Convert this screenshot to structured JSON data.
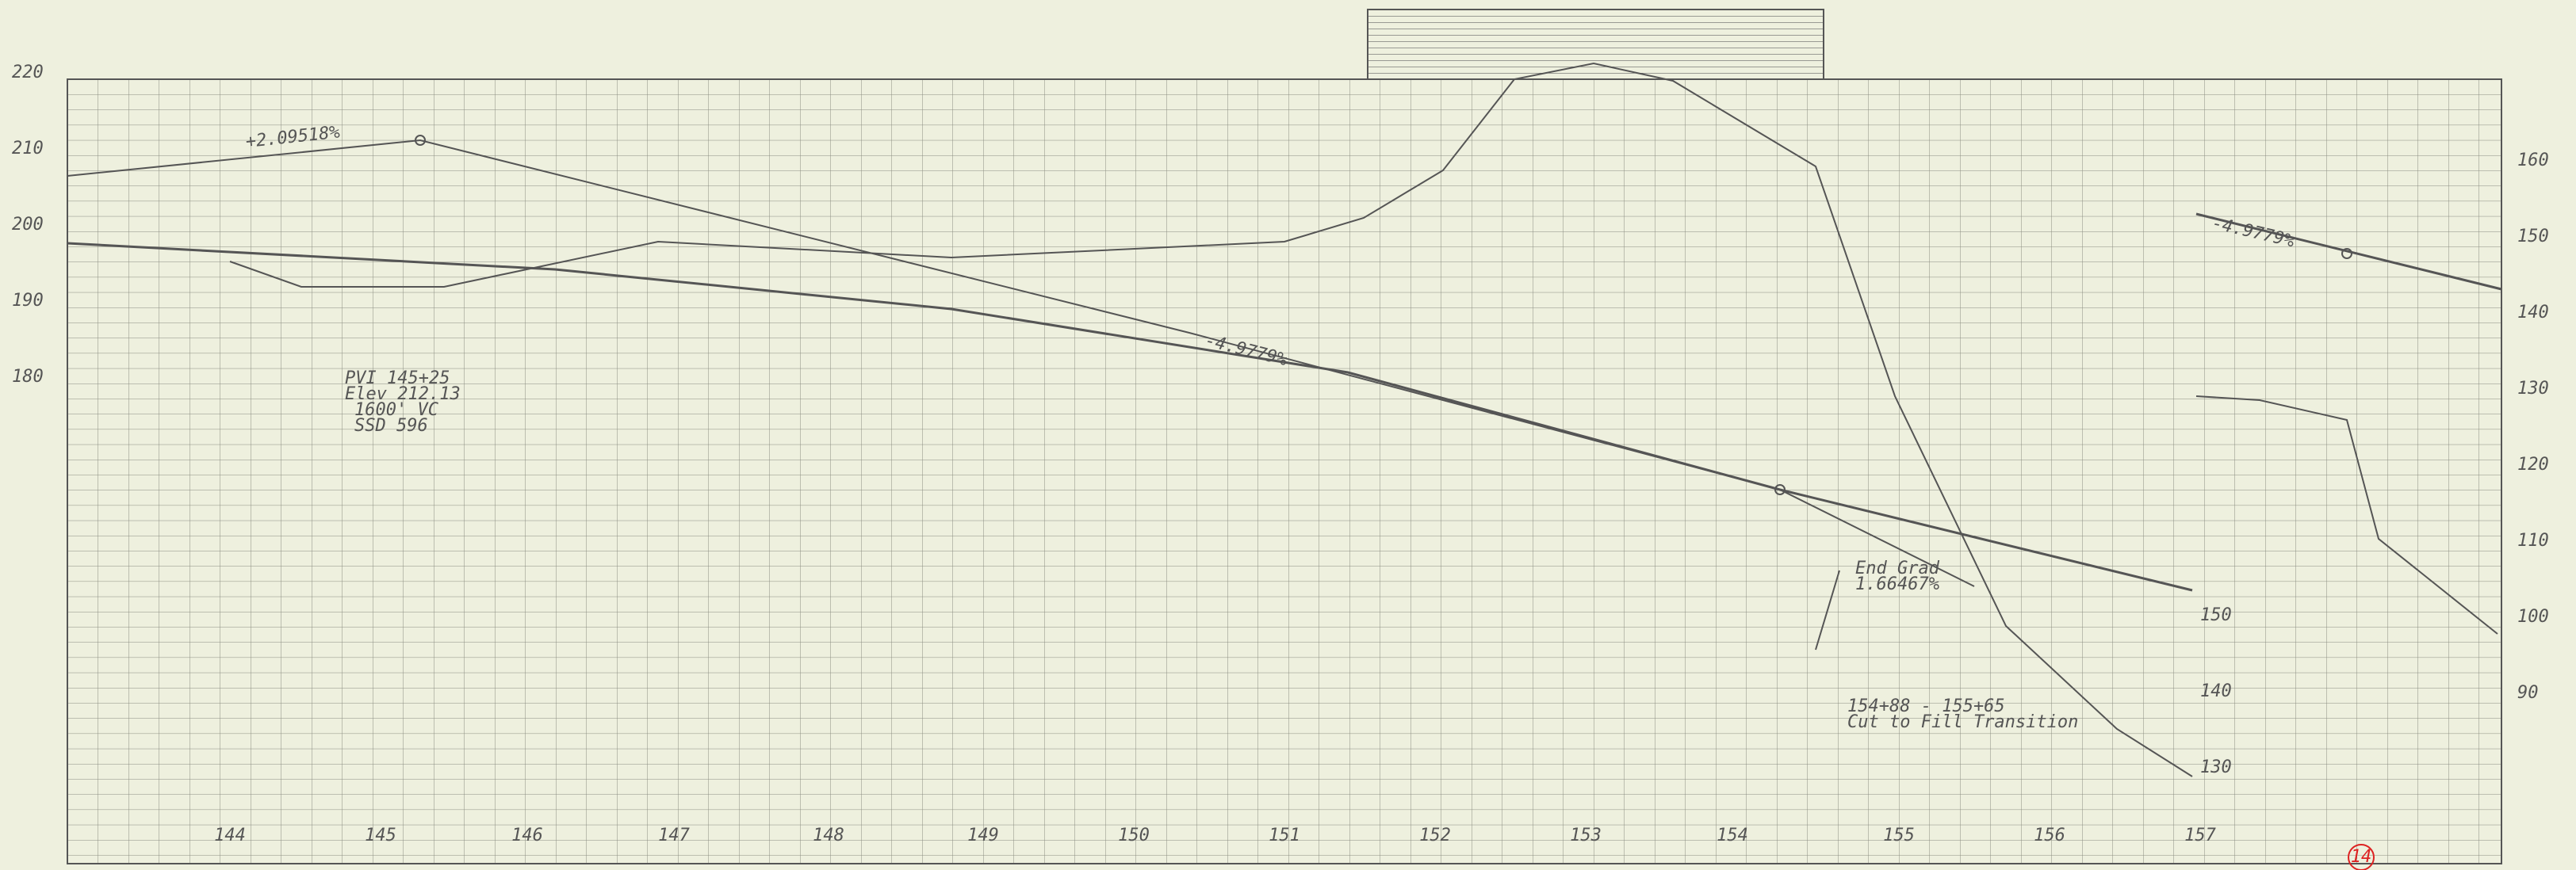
{
  "left_axis": {
    "labels": [
      "220",
      "210",
      "200",
      "190",
      "180"
    ]
  },
  "right_axis": {
    "labels": [
      "160",
      "150",
      "140",
      "130",
      "120",
      "110",
      "100",
      "90"
    ]
  },
  "middle_axis": {
    "labels": [
      "150",
      "140",
      "130"
    ]
  },
  "stations": [
    "144",
    "145",
    "146",
    "147",
    "148",
    "149",
    "150",
    "151",
    "152",
    "153",
    "154",
    "155",
    "156",
    "157"
  ],
  "annotations": {
    "grade_in": "+2.09518%",
    "grade_out": "-4.9779%",
    "grade_right": "-4.9779%",
    "pvi": [
      "PVI 145+25",
      "Elev 212.13",
      "1600' VC",
      "SSD 596"
    ],
    "end_grad": [
      "End Grad",
      "1.66467%"
    ],
    "transition": [
      "154+88 - 155+65",
      "Cut to Fill Transition"
    ],
    "sheet": "14"
  }
}
